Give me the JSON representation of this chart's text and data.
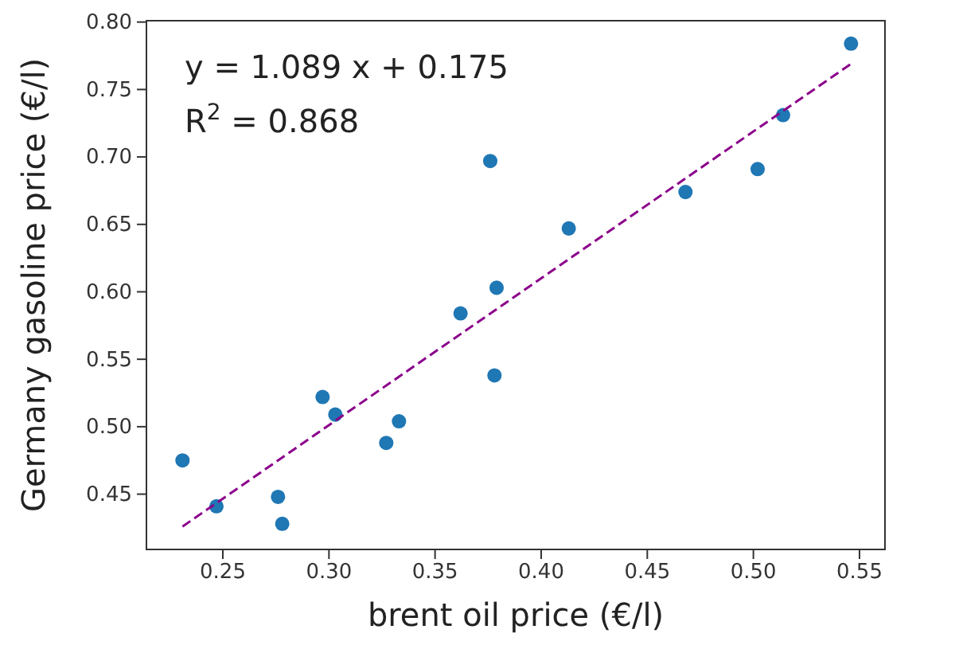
{
  "chart_data": {
    "type": "scatter",
    "xlabel": "brent oil price (€/l)",
    "ylabel": "Germany gasoline price (€/l)",
    "annotations": [
      "y = 1.089 x + 0.175",
      "R$^{2}$ = 0.868"
    ],
    "xlim": [
      0.214,
      0.562
    ],
    "ylim": [
      0.409,
      0.801
    ],
    "xticks": [
      {
        "value": 0.25,
        "label": "0.25"
      },
      {
        "value": 0.3,
        "label": "0.30"
      },
      {
        "value": 0.35,
        "label": "0.35"
      },
      {
        "value": 0.4,
        "label": "0.40"
      },
      {
        "value": 0.45,
        "label": "0.45"
      },
      {
        "value": 0.5,
        "label": "0.50"
      },
      {
        "value": 0.55,
        "label": "0.55"
      }
    ],
    "yticks": [
      {
        "value": 0.45,
        "label": "0.45"
      },
      {
        "value": 0.5,
        "label": "0.50"
      },
      {
        "value": 0.55,
        "label": "0.55"
      },
      {
        "value": 0.6,
        "label": "0.60"
      },
      {
        "value": 0.65,
        "label": "0.65"
      },
      {
        "value": 0.7,
        "label": "0.70"
      },
      {
        "value": 0.75,
        "label": "0.75"
      },
      {
        "value": 0.8,
        "label": "0.80"
      }
    ],
    "grid": false,
    "series": [
      {
        "color": "#1f77b4",
        "marker": "circle",
        "x": [
          0.231,
          0.247,
          0.276,
          0.278,
          0.297,
          0.303,
          0.327,
          0.333,
          0.362,
          0.376,
          0.379,
          0.378,
          0.413,
          0.468,
          0.502,
          0.514,
          0.546
        ],
        "values": [
          0.475,
          0.441,
          0.448,
          0.428,
          0.522,
          0.509,
          0.488,
          0.504,
          0.584,
          0.697,
          0.603,
          0.538,
          0.647,
          0.674,
          0.691,
          0.731,
          0.784
        ]
      },
      {
        "type": "line",
        "color": "#8b008b",
        "line_style": "dashed",
        "marker": "none",
        "x": [
          0.231,
          0.546
        ],
        "values": [
          0.426,
          0.769
        ]
      }
    ]
  }
}
